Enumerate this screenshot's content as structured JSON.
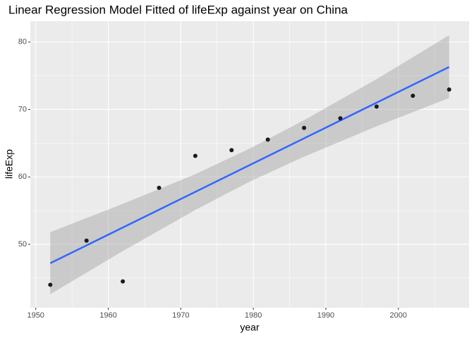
{
  "chart_data": {
    "type": "scatter",
    "title": "Linear Regression Model Fitted of lifeExp against year on China",
    "x_label": "year",
    "y_label": "lifeExp",
    "points": {
      "x": [
        1952,
        1957,
        1962,
        1967,
        1972,
        1977,
        1982,
        1987,
        1992,
        1997,
        2002,
        2007
      ],
      "values": [
        44.0,
        50.55,
        44.5,
        58.38,
        63.12,
        63.97,
        65.53,
        67.27,
        68.69,
        70.43,
        72.03,
        72.96
      ],
      "color": "#1a1a1a"
    },
    "fit": {
      "x": [
        1952,
        2007
      ],
      "values": [
        47.2,
        76.3
      ],
      "color": "#3366ff"
    },
    "band": {
      "x": [
        1952,
        1962,
        1972,
        1979.5,
        1987,
        1997,
        2007
      ],
      "ymin": [
        42.6,
        49.0,
        55.1,
        59.3,
        63.0,
        67.5,
        71.7
      ],
      "ymax": [
        51.8,
        56.0,
        60.4,
        64.2,
        68.4,
        74.5,
        81.0
      ],
      "color": "#999999"
    },
    "xlim": [
      1949.25,
      2009.75
    ],
    "ylim": [
      40.6,
      83.1
    ],
    "xticks": [
      1950,
      1960,
      1970,
      1980,
      1990,
      2000
    ],
    "yticks": [
      50,
      60,
      70,
      80
    ],
    "x_minor_ticks": [
      1955,
      1965,
      1975,
      1985,
      1995,
      2005
    ],
    "y_minor_ticks": [
      45,
      55,
      65,
      75
    ],
    "grid": true
  }
}
